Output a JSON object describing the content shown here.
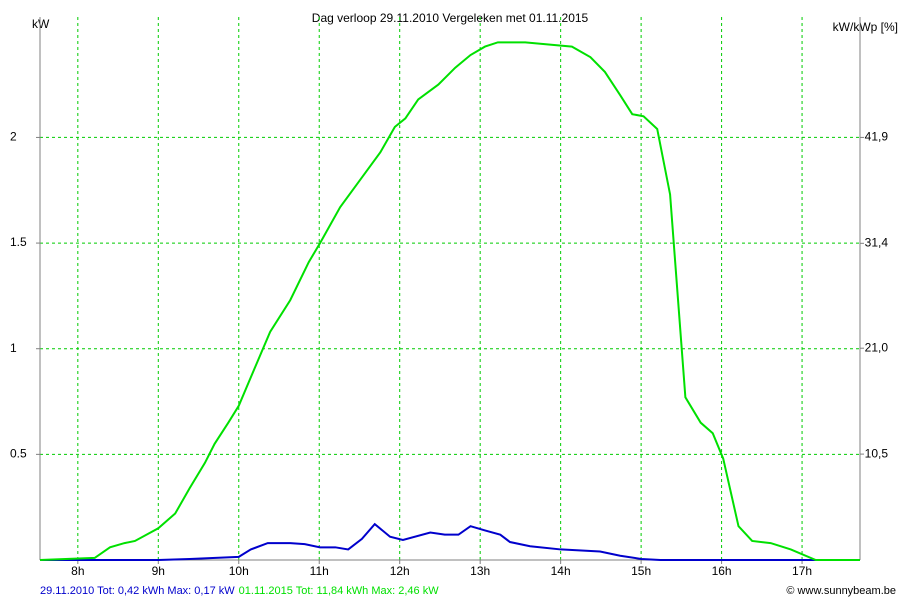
{
  "chart_data": {
    "type": "line",
    "title": "Dag  verloop 29.11.2010   Vergeleken met 01.11.2015",
    "y_label": "kW",
    "y2_label": "kW/kWp [%]",
    "credit": "© www.sunnybeam.be",
    "xlim": [
      7.53,
      17.72
    ],
    "xticks": [
      {
        "value": 8,
        "label": "8h"
      },
      {
        "value": 9,
        "label": "9h"
      },
      {
        "value": 10,
        "label": "10h"
      },
      {
        "value": 11,
        "label": "11h"
      },
      {
        "value": 12,
        "label": "12h"
      },
      {
        "value": 13,
        "label": "13h"
      },
      {
        "value": 14,
        "label": "14h"
      },
      {
        "value": 15,
        "label": "15h"
      },
      {
        "value": 16,
        "label": "16h"
      },
      {
        "value": 17,
        "label": "17h"
      }
    ],
    "ylim": [
      0,
      2.57
    ],
    "yticks": [
      0.5,
      1,
      1.5,
      2
    ],
    "y2lim": [
      0,
      53.84
    ],
    "y2ticks": [
      {
        "value": 10.5,
        "label": "10,5"
      },
      {
        "value": 21.0,
        "label": "21,0"
      },
      {
        "value": 31.4,
        "label": "31,4"
      },
      {
        "value": 41.9,
        "label": "41,9"
      }
    ],
    "grid": true,
    "grid_color": "#00cc00",
    "series": [
      {
        "name": "29.11.2010 Tot: 0,42 kWh Max: 0,17 kW",
        "color": "#0000cc",
        "x": [
          7.53,
          9,
          9.39,
          10,
          10.15,
          10.36,
          10.64,
          10.82,
          11.01,
          11.2,
          11.36,
          11.53,
          11.69,
          11.88,
          12.04,
          12.38,
          12.56,
          12.73,
          12.88,
          13.06,
          13.25,
          13.37,
          13.62,
          14,
          14.49,
          14.74,
          15,
          15.24,
          17.72
        ],
        "values": [
          0,
          0,
          0.005,
          0.015,
          0.05,
          0.08,
          0.08,
          0.075,
          0.06,
          0.06,
          0.05,
          0.1,
          0.17,
          0.11,
          0.095,
          0.13,
          0.12,
          0.12,
          0.16,
          0.14,
          0.12,
          0.085,
          0.065,
          0.05,
          0.04,
          0.02,
          0.005,
          0,
          0
        ]
      },
      {
        "name": "01.11.2015 Tot: 11,84 kWh Max: 2,46 kW",
        "color": "#00e000",
        "x": [
          7.53,
          8.21,
          8.4,
          8.58,
          8.71,
          9,
          9.21,
          9.39,
          9.58,
          9.7,
          9.87,
          10,
          10.2,
          10.39,
          10.64,
          10.87,
          11.01,
          11.26,
          11.51,
          11.76,
          11.94,
          12.07,
          12.23,
          12.48,
          12.69,
          12.88,
          13.06,
          13.22,
          13.56,
          13.85,
          14.14,
          14.37,
          14.55,
          14.74,
          14.89,
          15.03,
          15.2,
          15.36,
          15.55,
          15.74,
          15.89,
          16.02,
          16.21,
          16.38,
          16.61,
          16.86,
          17.17,
          17.72
        ],
        "values": [
          0,
          0.01,
          0.06,
          0.08,
          0.09,
          0.15,
          0.22,
          0.34,
          0.46,
          0.55,
          0.65,
          0.73,
          0.91,
          1.08,
          1.23,
          1.41,
          1.5,
          1.67,
          1.8,
          1.93,
          2.05,
          2.09,
          2.18,
          2.25,
          2.33,
          2.39,
          2.43,
          2.45,
          2.45,
          2.44,
          2.43,
          2.38,
          2.31,
          2.2,
          2.11,
          2.1,
          2.04,
          1.73,
          0.77,
          0.65,
          0.6,
          0.48,
          0.16,
          0.09,
          0.08,
          0.05,
          0,
          0
        ]
      }
    ]
  }
}
